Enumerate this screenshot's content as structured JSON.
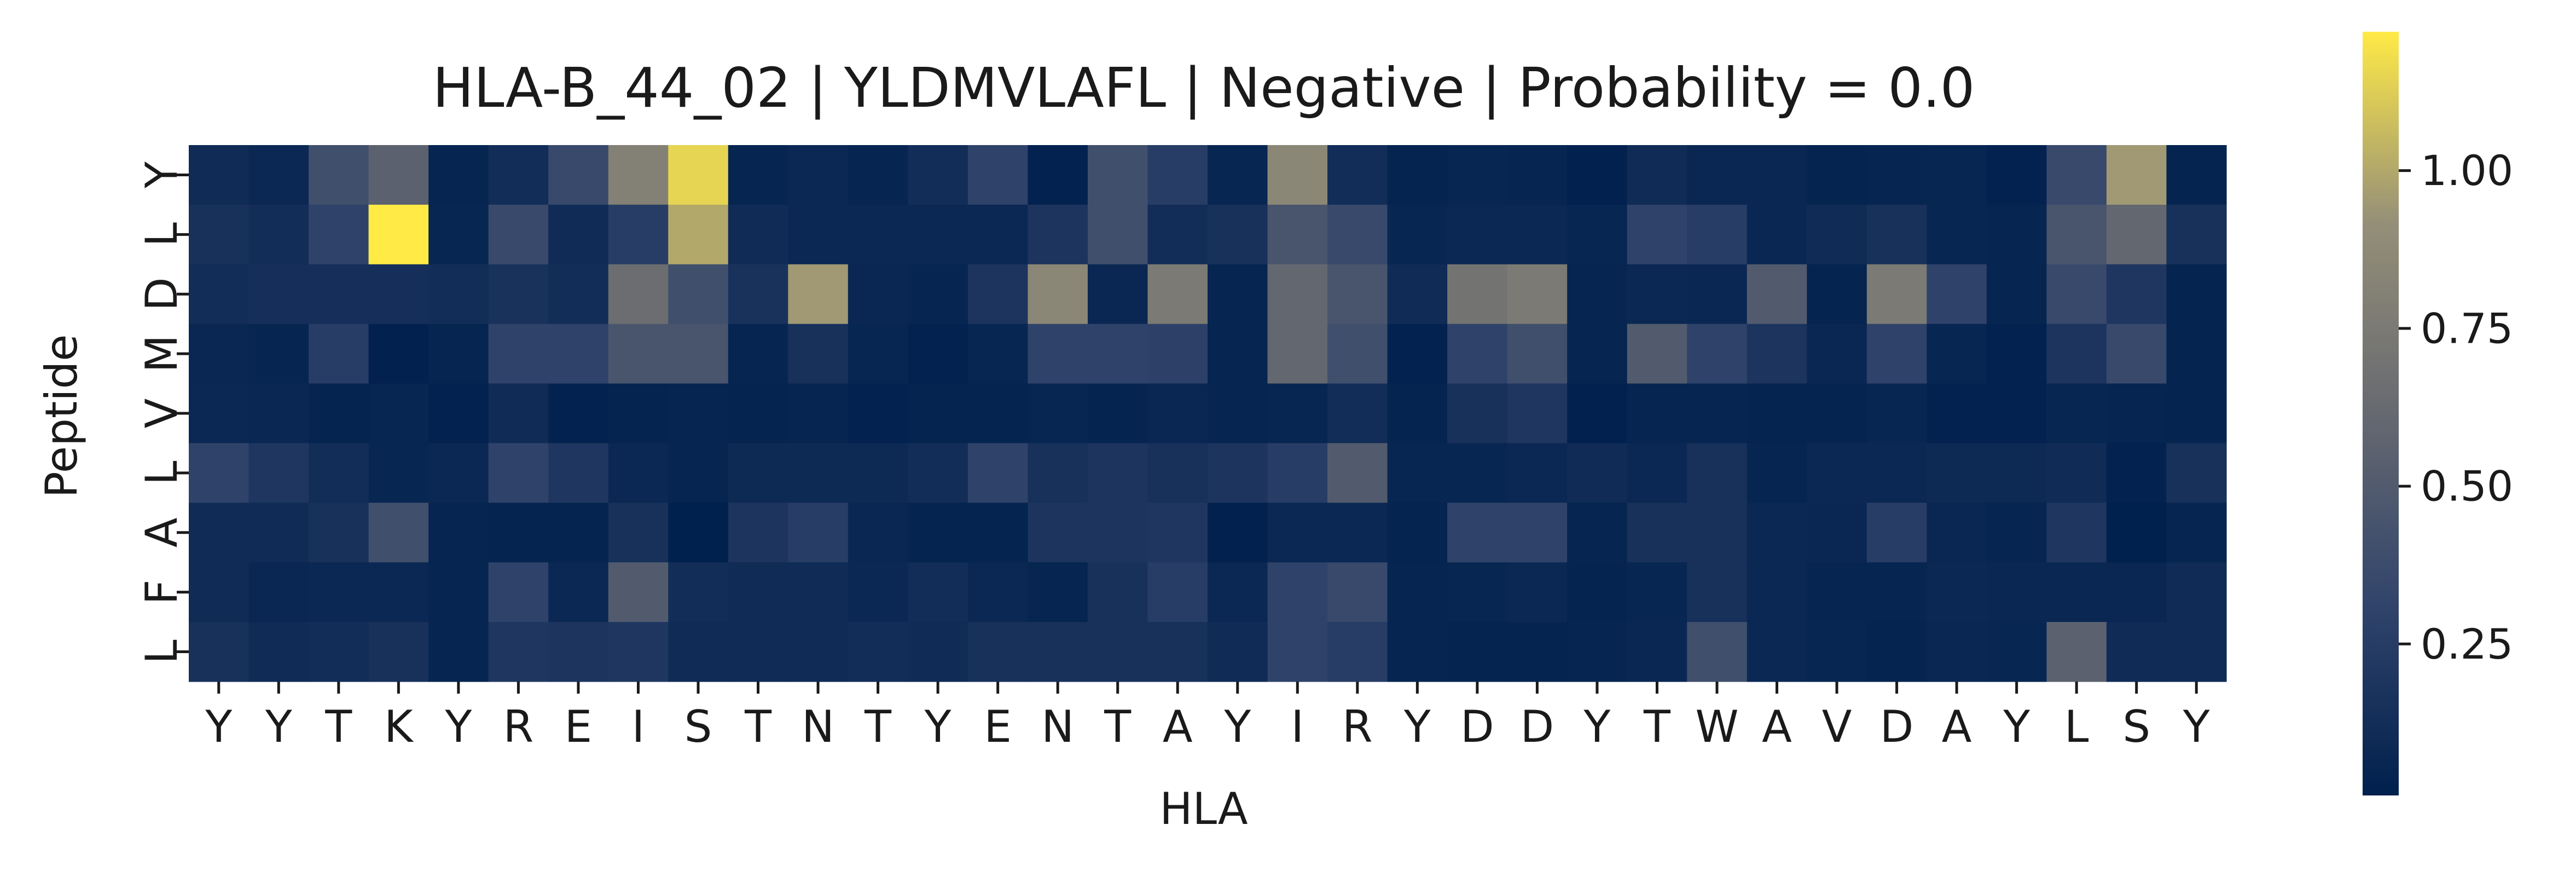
{
  "chart_data": {
    "type": "heatmap",
    "title": "HLA-B_44_02 | YLDMVLAFL | Negative | Probability = 0.0",
    "xlabel": "HLA",
    "ylabel": "Peptide",
    "x_labels": [
      "Y",
      "Y",
      "T",
      "K",
      "Y",
      "R",
      "E",
      "I",
      "S",
      "T",
      "N",
      "T",
      "Y",
      "E",
      "N",
      "T",
      "A",
      "Y",
      "I",
      "R",
      "Y",
      "D",
      "D",
      "Y",
      "T",
      "W",
      "A",
      "V",
      "D",
      "A",
      "Y",
      "L",
      "S",
      "Y"
    ],
    "y_labels": [
      "Y",
      "L",
      "D",
      "M",
      "V",
      "L",
      "A",
      "F",
      "L"
    ],
    "values": [
      [
        0.1,
        0.08,
        0.4,
        0.55,
        0.05,
        0.12,
        0.35,
        0.8,
        1.15,
        0.05,
        0.08,
        0.05,
        0.12,
        0.3,
        0.03,
        0.4,
        0.25,
        0.06,
        0.85,
        0.12,
        0.04,
        0.06,
        0.05,
        0.02,
        0.1,
        0.07,
        0.07,
        0.04,
        0.05,
        0.06,
        0.03,
        0.35,
        0.95,
        0.04
      ],
      [
        0.15,
        0.12,
        0.3,
        1.22,
        0.06,
        0.35,
        0.1,
        0.25,
        1.0,
        0.1,
        0.08,
        0.08,
        0.08,
        0.08,
        0.18,
        0.4,
        0.12,
        0.15,
        0.45,
        0.35,
        0.06,
        0.08,
        0.08,
        0.06,
        0.3,
        0.25,
        0.07,
        0.1,
        0.15,
        0.06,
        0.05,
        0.45,
        0.6,
        0.15
      ],
      [
        0.12,
        0.14,
        0.14,
        0.14,
        0.12,
        0.16,
        0.12,
        0.65,
        0.4,
        0.16,
        0.95,
        0.07,
        0.05,
        0.18,
        0.85,
        0.07,
        0.75,
        0.05,
        0.6,
        0.45,
        0.1,
        0.7,
        0.75,
        0.05,
        0.08,
        0.07,
        0.5,
        0.04,
        0.75,
        0.3,
        0.05,
        0.35,
        0.2,
        0.04
      ],
      [
        0.07,
        0.05,
        0.25,
        0.02,
        0.05,
        0.3,
        0.3,
        0.45,
        0.45,
        0.05,
        0.15,
        0.06,
        0.03,
        0.06,
        0.3,
        0.3,
        0.28,
        0.05,
        0.6,
        0.4,
        0.03,
        0.3,
        0.4,
        0.05,
        0.5,
        0.3,
        0.18,
        0.07,
        0.3,
        0.06,
        0.03,
        0.18,
        0.35,
        0.04
      ],
      [
        0.08,
        0.07,
        0.04,
        0.06,
        0.03,
        0.1,
        0.03,
        0.04,
        0.05,
        0.04,
        0.05,
        0.03,
        0.04,
        0.04,
        0.06,
        0.04,
        0.07,
        0.05,
        0.06,
        0.12,
        0.04,
        0.15,
        0.2,
        0.02,
        0.05,
        0.05,
        0.04,
        0.04,
        0.06,
        0.03,
        0.03,
        0.06,
        0.05,
        0.04
      ],
      [
        0.3,
        0.2,
        0.12,
        0.06,
        0.08,
        0.3,
        0.2,
        0.08,
        0.05,
        0.09,
        0.09,
        0.09,
        0.12,
        0.3,
        0.15,
        0.18,
        0.15,
        0.18,
        0.25,
        0.5,
        0.06,
        0.06,
        0.08,
        0.1,
        0.08,
        0.15,
        0.05,
        0.08,
        0.08,
        0.09,
        0.09,
        0.1,
        0.03,
        0.15
      ],
      [
        0.1,
        0.1,
        0.15,
        0.4,
        0.05,
        0.04,
        0.04,
        0.15,
        0.01,
        0.18,
        0.25,
        0.07,
        0.04,
        0.04,
        0.18,
        0.18,
        0.2,
        0.02,
        0.08,
        0.08,
        0.04,
        0.3,
        0.3,
        0.05,
        0.15,
        0.15,
        0.08,
        0.07,
        0.25,
        0.07,
        0.05,
        0.2,
        0.01,
        0.05
      ],
      [
        0.1,
        0.07,
        0.08,
        0.08,
        0.05,
        0.3,
        0.08,
        0.5,
        0.12,
        0.1,
        0.1,
        0.08,
        0.12,
        0.08,
        0.05,
        0.15,
        0.25,
        0.08,
        0.3,
        0.35,
        0.05,
        0.06,
        0.08,
        0.04,
        0.06,
        0.15,
        0.08,
        0.05,
        0.05,
        0.08,
        0.07,
        0.07,
        0.07,
        0.1
      ],
      [
        0.15,
        0.1,
        0.12,
        0.15,
        0.05,
        0.2,
        0.18,
        0.2,
        0.1,
        0.1,
        0.1,
        0.12,
        0.1,
        0.15,
        0.15,
        0.15,
        0.15,
        0.1,
        0.3,
        0.25,
        0.05,
        0.04,
        0.04,
        0.05,
        0.07,
        0.4,
        0.08,
        0.06,
        0.04,
        0.07,
        0.06,
        0.55,
        0.1,
        0.1
      ]
    ],
    "colormap": "cividis",
    "colorbar": {
      "vmin": 0.01,
      "vmax": 1.22,
      "ticks": [
        0.25,
        0.5,
        0.75,
        1.0
      ],
      "tick_labels": [
        "0.25",
        "0.50",
        "0.75",
        "1.00"
      ]
    },
    "grid": false,
    "legend": "colorbar-right"
  }
}
